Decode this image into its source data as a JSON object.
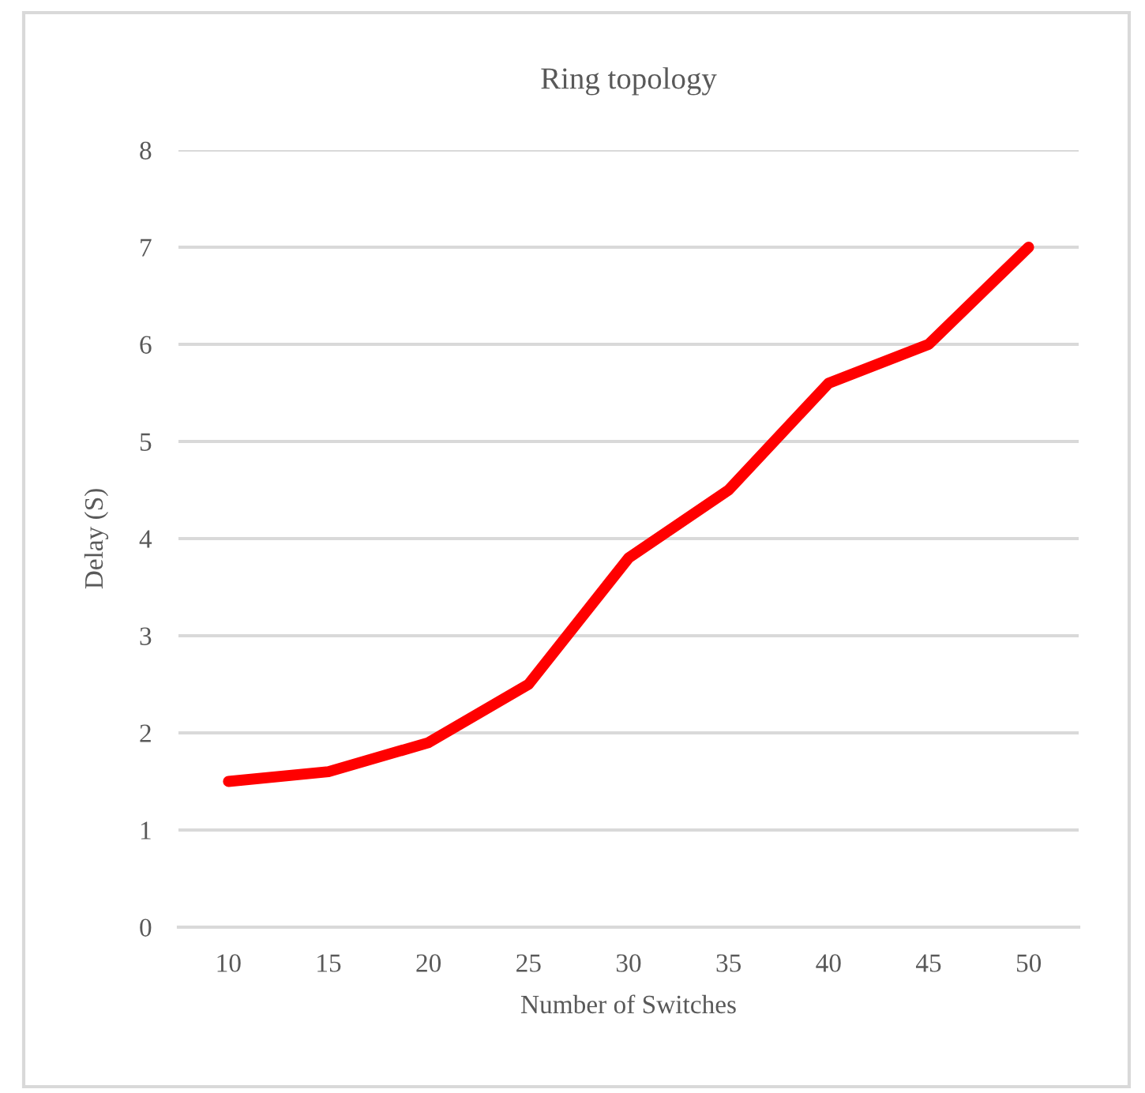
{
  "chart_data": {
    "type": "line",
    "title": "Ring topology",
    "xlabel": "Number of Switches",
    "ylabel": "Delay (S)",
    "categories": [
      "10",
      "15",
      "20",
      "25",
      "30",
      "35",
      "40",
      "45",
      "50"
    ],
    "series": [
      {
        "color": "#ff0000",
        "values": [
          1.5,
          1.6,
          1.9,
          2.5,
          3.8,
          4.5,
          5.6,
          6.0,
          7.0
        ]
      }
    ],
    "ylim": [
      0,
      8
    ],
    "yticks": [
      0,
      1,
      2,
      3,
      4,
      5,
      6,
      7,
      8
    ],
    "grid": "y",
    "marker": "none",
    "line_style": "solid"
  }
}
